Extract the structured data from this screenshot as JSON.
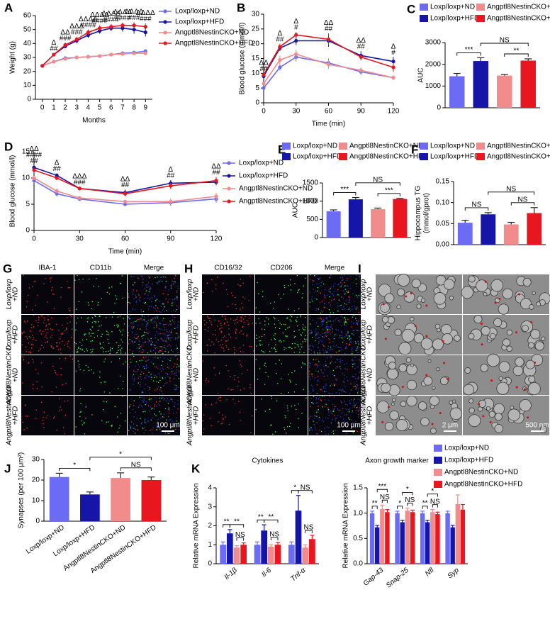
{
  "chart_data": [
    {
      "type": "line",
      "label": "A",
      "xlabel": "Months",
      "ylabel": "Weight (g)",
      "x": [
        0,
        1,
        2,
        3,
        4,
        5,
        6,
        7,
        8,
        9
      ],
      "xlim": [
        -0.6,
        9.6
      ],
      "xticks": [
        0,
        1,
        2,
        3,
        4,
        5,
        6,
        7,
        8,
        9
      ],
      "ylim": [
        0,
        60
      ],
      "yticks": [
        0,
        10,
        20,
        30,
        40,
        50,
        60
      ],
      "legend": "top-right",
      "series": [
        {
          "name": "Loxp/loxp+ND",
          "color": "#6b6bf5",
          "values": [
            24,
            27,
            29.5,
            30,
            30.5,
            31,
            32,
            33,
            33.5,
            34.5
          ],
          "errors": [
            0.8,
            0.8,
            0.8,
            0.9,
            0.9,
            1,
            1,
            1,
            1,
            1.2
          ]
        },
        {
          "name": "Loxp/loxp+HFD",
          "color": "#1515a8",
          "values": [
            24,
            32,
            38,
            42,
            46,
            49,
            51,
            51,
            50,
            48
          ],
          "errors": [
            0.8,
            1.2,
            1.5,
            1.8,
            2,
            2,
            2.2,
            2.5,
            3,
            3
          ]
        },
        {
          "name": "Angptl8NestinCKO+ND",
          "color": "#f28b8b",
          "values": [
            24,
            27,
            29,
            30,
            30.5,
            31,
            32,
            32.5,
            33,
            33
          ],
          "errors": [
            0.8,
            0.8,
            0.8,
            0.8,
            0.9,
            0.9,
            1,
            1,
            1,
            1
          ]
        },
        {
          "name": "Angptl8NestinCKO+HFD",
          "color": "#e8161e",
          "values": [
            24,
            32,
            39,
            43,
            48,
            51,
            52,
            53,
            53,
            52
          ],
          "errors": [
            0.8,
            1.2,
            1.5,
            1.8,
            2,
            2,
            2,
            2,
            2.2,
            2.5
          ]
        }
      ],
      "annotations": [
        {
          "x": 1,
          "text": [
            "Δ",
            "##"
          ]
        },
        {
          "x": 2,
          "text": [
            "ΔΔ",
            "###"
          ]
        },
        {
          "x": 3,
          "text": [
            "ΔΔΔ",
            "###"
          ]
        },
        {
          "x": 4,
          "text": [
            "ΔΔΔΔ",
            "####"
          ]
        },
        {
          "x": 5,
          "text": [
            "ΔΔΔΔ",
            "####"
          ]
        },
        {
          "x": 6,
          "text": [
            "ΔΔΔΔ",
            "####"
          ]
        },
        {
          "x": 7,
          "text": [
            "ΔΔΔΔ",
            "####"
          ]
        },
        {
          "x": 8,
          "text": [
            "ΔΔΔΔ",
            "###"
          ]
        },
        {
          "x": 9,
          "text": [
            "ΔΔΔΔ",
            "###"
          ]
        }
      ]
    },
    {
      "type": "line",
      "label": "B",
      "xlabel": "Time (min)",
      "ylabel": "Blood glucose (mmol/l)",
      "x": [
        0,
        15,
        30,
        60,
        90,
        120
      ],
      "xlim": [
        0,
        120
      ],
      "xticks": [
        0,
        30,
        60,
        90,
        120
      ],
      "ylim": [
        0,
        30
      ],
      "yticks": [
        0,
        5,
        10,
        15,
        20,
        25,
        30
      ],
      "series": [
        {
          "name": "Loxp/loxp+ND",
          "color": "#6b6bf5",
          "values": [
            5,
            12,
            15.5,
            13.5,
            10.5,
            8.5
          ],
          "errors": [
            0.3,
            1,
            1.5,
            1.5,
            1,
            0.8
          ]
        },
        {
          "name": "Loxp/loxp+HFD",
          "color": "#1515a8",
          "values": [
            9,
            18.5,
            21,
            21,
            16,
            14
          ],
          "errors": [
            0.5,
            1,
            1.5,
            2,
            1.5,
            1.5
          ]
        },
        {
          "name": "Angptl8NestinCKO+ND",
          "color": "#f28b8b",
          "values": [
            6.5,
            14.5,
            16.5,
            13,
            11,
            8.5
          ],
          "errors": [
            0.3,
            1.5,
            1.5,
            1.5,
            1,
            0.8
          ]
        },
        {
          "name": "Angptl8NestinCKO+HFD",
          "color": "#e8161e",
          "values": [
            9.5,
            19,
            23,
            21.5,
            15.5,
            12
          ],
          "errors": [
            0.5,
            1,
            1,
            2,
            1,
            1.5
          ]
        }
      ],
      "annotations": [
        {
          "x": 0,
          "text": [
            "ΔΔ",
            "##"
          ]
        },
        {
          "x": 15,
          "text": [
            "Δ",
            "##"
          ]
        },
        {
          "x": 30,
          "text": [
            "Δ",
            "#"
          ]
        },
        {
          "x": 60,
          "text": [
            "ΔΔ",
            "##"
          ]
        },
        {
          "x": 90,
          "text": [
            "ΔΔ",
            "##"
          ]
        },
        {
          "x": 120,
          "text": [
            "Δ",
            "#"
          ]
        }
      ]
    },
    {
      "type": "bar",
      "label": "C",
      "ylabel": "AUC",
      "legend": "top",
      "categories": [
        "Loxp/loxp+ND",
        "Loxp/loxp+HFD",
        "Angptl8NestinCKO+ND",
        "Angptl8NestinCKO+HFD"
      ],
      "colors": [
        "#6b6bf5",
        "#1515a8",
        "#f28b8b",
        "#e8161e"
      ],
      "values": [
        1450,
        2150,
        1480,
        2170
      ],
      "errors": [
        130,
        150,
        50,
        80
      ],
      "ylim": [
        0,
        3000
      ],
      "yticks": [
        0,
        1000,
        2000,
        3000
      ],
      "brackets": [
        {
          "from": 0,
          "to": 1,
          "text": "***"
        },
        {
          "from": 1,
          "to": 3,
          "text": "NS"
        },
        {
          "from": 2,
          "to": 3,
          "text": "**"
        }
      ]
    },
    {
      "type": "line",
      "label": "D",
      "xlabel": "Time (min)",
      "ylabel": "Blood glucose (mmol/l)",
      "x": [
        0,
        15,
        30,
        60,
        90,
        120
      ],
      "xlim": [
        0,
        120
      ],
      "xticks": [
        0,
        30,
        60,
        90,
        120
      ],
      "ylim": [
        0,
        15
      ],
      "yticks": [
        0,
        5,
        10,
        15
      ],
      "legend": "right",
      "series": [
        {
          "name": "Loxp/loxp+ND",
          "color": "#6b6bf5",
          "values": [
            9.5,
            7,
            6,
            5,
            5.3,
            6
          ],
          "errors": [
            0.4,
            0.5,
            0.3,
            0.3,
            0.6,
            0.7
          ]
        },
        {
          "name": "Loxp/loxp+HFD",
          "color": "#1515a8",
          "values": [
            12,
            10.5,
            8,
            7.2,
            9,
            9.2
          ],
          "errors": [
            0.4,
            0.4,
            0.3,
            0.6,
            0.6,
            0.6
          ]
        },
        {
          "name": "Angptl8NestinCKO+ND",
          "color": "#f28b8b",
          "values": [
            10,
            7.5,
            6.2,
            5.5,
            5.5,
            6.5
          ],
          "errors": [
            0.4,
            0.5,
            0.3,
            0.3,
            0.6,
            0.7
          ]
        },
        {
          "name": "Angptl8NestinCKO+HFD",
          "color": "#e8161e",
          "values": [
            11.5,
            10,
            8,
            7,
            8.5,
            9.5
          ],
          "errors": [
            0.5,
            0.4,
            0.3,
            0.5,
            0.6,
            0.7
          ]
        }
      ],
      "annotations": [
        {
          "x": 0,
          "text": [
            "ΔΔ",
            "####",
            "##"
          ]
        },
        {
          "x": 15,
          "text": [
            "Δ",
            "##"
          ]
        },
        {
          "x": 30,
          "text": [
            "ΔΔΔ",
            "###"
          ]
        },
        {
          "x": 60,
          "text": [
            "ΔΔ",
            "##"
          ]
        },
        {
          "x": 90,
          "text": [
            "Δ",
            "##"
          ]
        },
        {
          "x": 120,
          "text": [
            "ΔΔ",
            "##"
          ]
        }
      ]
    },
    {
      "type": "bar",
      "label": "E",
      "ylabel": "AUC",
      "legend": "top",
      "categories": [
        "Loxp/loxp+ND",
        "Loxp/loxp+HFD",
        "Angptl8NestinCKO+ND",
        "Angptl8NestinCKO+HFD"
      ],
      "colors": [
        "#6b6bf5",
        "#1515a8",
        "#f28b8b",
        "#e8161e"
      ],
      "values": [
        720,
        1050,
        780,
        1060
      ],
      "errors": [
        40,
        50,
        30,
        15
      ],
      "ylim": [
        0,
        1500
      ],
      "yticks": [
        0,
        500,
        1000,
        1500
      ],
      "brackets": [
        {
          "from": 0,
          "to": 1,
          "text": "***"
        },
        {
          "from": 1,
          "to": 3,
          "text": "NS"
        },
        {
          "from": 2,
          "to": 3,
          "text": "***"
        }
      ]
    },
    {
      "type": "bar",
      "label": "F",
      "ylabel": [
        "Hippocampus TG",
        "(mmol/gprot)"
      ],
      "legend": "top",
      "categories": [
        "Loxp/loxp+ND",
        "Loxp/loxp+HFD",
        "Angptl8NestinCKO+ND",
        "Angptl8NestinCKO+HFD"
      ],
      "colors": [
        "#6b6bf5",
        "#1515a8",
        "#f28b8b",
        "#e8161e"
      ],
      "values": [
        0.052,
        0.072,
        0.048,
        0.075
      ],
      "errors": [
        0.006,
        0.004,
        0.005,
        0.013
      ],
      "ylim": [
        0,
        0.15
      ],
      "yticks": [
        {
          "value": 0,
          "label": "0.00"
        },
        0.05,
        {
          "value": 0.1,
          "label": "0.10"
        },
        0.15
      ],
      "brackets": [
        {
          "from": 0,
          "to": 1,
          "text": "NS"
        },
        {
          "from": 1,
          "to": 3,
          "text": "NS"
        },
        {
          "from": 2,
          "to": 3,
          "text": "NS"
        }
      ]
    },
    {
      "type": "bar",
      "label": "J",
      "ylabel": "Synapses (per 100 μm²)",
      "categories": [
        "Loxp/loxp+ND",
        "Loxp/loxp+HFD",
        "Angptl8NestinCKO+ND",
        "Angptl8NestinCKO+HFD"
      ],
      "colors": [
        "#6b6bf5",
        "#1515a8",
        "#f28b8b",
        "#e8161e"
      ],
      "values": [
        21.5,
        13,
        21,
        20
      ],
      "errors": [
        1.8,
        1.2,
        2.5,
        1.5
      ],
      "ylim": [
        0,
        30
      ],
      "yticks": [
        0,
        10,
        20,
        30
      ],
      "brackets": [
        {
          "from": 0,
          "to": 1,
          "text": "*"
        },
        {
          "from": 1,
          "to": 3,
          "text": "*"
        },
        {
          "from": 2,
          "to": 3,
          "text": "NS"
        }
      ]
    },
    {
      "type": "grouped-bar",
      "label": "K",
      "title": "Cytokines",
      "ylabel": "Relative mRNA Expression",
      "categories": [
        "Il-1β",
        "Il-6",
        "Tnf-α"
      ],
      "ylim": [
        0,
        4
      ],
      "yticks": [
        0,
        1,
        2,
        3,
        4
      ],
      "series": [
        {
          "name": "Loxp/loxp+ND",
          "color": "#6b6bf5",
          "values": [
            1,
            1,
            1
          ],
          "errors": [
            0.15,
            0.15,
            0.15
          ]
        },
        {
          "name": "Loxp/loxp+HFD",
          "color": "#1515a8",
          "values": [
            1.6,
            1.75,
            2.8
          ],
          "errors": [
            0.2,
            0.3,
            0.8
          ]
        },
        {
          "name": "Angptl8NestinCKO+ND",
          "color": "#f28b8b",
          "values": [
            0.85,
            0.9,
            0.85
          ],
          "errors": [
            0.1,
            0.1,
            0.15
          ]
        },
        {
          "name": "Angptl8NestinCKO+HFD",
          "color": "#e8161e",
          "values": [
            1,
            1,
            1.3
          ],
          "errors": [
            0.1,
            0.12,
            0.2
          ]
        }
      ],
      "brackets": [
        {
          "category": 0,
          "from": 0,
          "to": 1,
          "text": "**"
        },
        {
          "category": 0,
          "from": 1,
          "to": 3,
          "text": "**"
        },
        {
          "category": 0,
          "from": 2,
          "to": 3,
          "text": "NS"
        },
        {
          "category": 1,
          "from": 0,
          "to": 1,
          "text": "**"
        },
        {
          "category": 1,
          "from": 1,
          "to": 3,
          "text": "**"
        },
        {
          "category": 1,
          "from": 2,
          "to": 3,
          "text": "NS"
        },
        {
          "category": 2,
          "from": 0,
          "to": 1,
          "text": "*"
        },
        {
          "category": 2,
          "from": 1,
          "to": 3,
          "text": "NS"
        },
        {
          "category": 2,
          "from": 2,
          "to": 3,
          "text": "NS"
        }
      ]
    },
    {
      "type": "grouped-bar",
      "title": "Axon growth marker",
      "ylabel": "Relative mRNA Expression",
      "legend": "top-right",
      "categories": [
        "Gap-43",
        "Snap-25",
        "Nfl",
        "Syp"
      ],
      "ylim": [
        0,
        1.5
      ],
      "yticks": [
        {
          "value": 0,
          "label": "0.0"
        },
        0.5,
        {
          "value": 1,
          "label": "1.0"
        },
        1.5
      ],
      "series": [
        {
          "name": "Loxp/loxp+ND",
          "color": "#6b6bf5",
          "values": [
            1,
            1,
            1,
            1
          ],
          "errors": [
            0.04,
            0.04,
            0.04,
            0.04
          ]
        },
        {
          "name": "Loxp/loxp+HFD",
          "color": "#1515a8",
          "values": [
            0.72,
            0.82,
            0.82,
            0.72
          ],
          "errors": [
            0.04,
            0.04,
            0.04,
            0.04
          ]
        },
        {
          "name": "Angptl8NestinCKO+ND",
          "color": "#f28b8b",
          "values": [
            1.08,
            1.05,
            1.02,
            1.18
          ],
          "errors": [
            0.08,
            0.05,
            0.05,
            0.18
          ]
        },
        {
          "name": "Angptl8NestinCKO+HFD",
          "color": "#e8161e",
          "values": [
            1.02,
            1.02,
            0.98,
            1.07
          ],
          "errors": [
            0.05,
            0.04,
            0.04,
            0.1
          ]
        }
      ],
      "brackets": [
        {
          "category": 0,
          "from": 0,
          "to": 1,
          "text": "**"
        },
        {
          "category": 0,
          "from": 1,
          "to": 3,
          "text": "***"
        },
        {
          "category": 0,
          "from": 2,
          "to": 3,
          "text": "NS"
        },
        {
          "category": 1,
          "from": 0,
          "to": 1,
          "text": "*"
        },
        {
          "category": 1,
          "from": 1,
          "to": 3,
          "text": "*"
        },
        {
          "category": 1,
          "from": 2,
          "to": 3,
          "text": "NS"
        },
        {
          "category": 2,
          "from": 0,
          "to": 1,
          "text": "**"
        },
        {
          "category": 2,
          "from": 1,
          "to": 3,
          "text": "*"
        },
        {
          "category": 2,
          "from": 2,
          "to": 3,
          "text": "NS"
        }
      ]
    }
  ],
  "figure_panels": [
    {
      "label": "G",
      "columns": [
        "IBA-1",
        "CD11b",
        "Merge"
      ],
      "rows": [
        [
          "Loxp/loxp",
          "+ND"
        ],
        [
          "Loxp/loxp",
          "+HFD"
        ],
        [
          "Angptl8NestinCKO",
          "+ND"
        ],
        [
          "Angptl8NestinCKO",
          "+HFD"
        ]
      ],
      "scale_bars": [
        "100 μm"
      ]
    },
    {
      "label": "H",
      "columns": [
        "CD16/32",
        "CD206",
        "Merge"
      ],
      "rows": [
        [
          "Loxp/loxp",
          "+ND"
        ],
        [
          "Loxp/loxp",
          "+HFD"
        ],
        [
          "Angptl8NestinCKO",
          "+ND"
        ],
        [
          "Angptl8NestinCKO",
          "+HFD"
        ]
      ],
      "scale_bars": [
        "100 μm"
      ]
    },
    {
      "label": "I",
      "rows": [
        [
          "Loxp/loxp",
          "+ND"
        ],
        [
          "Loxp/loxp",
          "+HFD"
        ],
        [
          "Angptl8NestinCKO",
          "+ND"
        ],
        [
          "Angptl8NestinCKO",
          "+HFD"
        ]
      ],
      "scale_bars": [
        "2 μm",
        "500 nm"
      ]
    }
  ]
}
